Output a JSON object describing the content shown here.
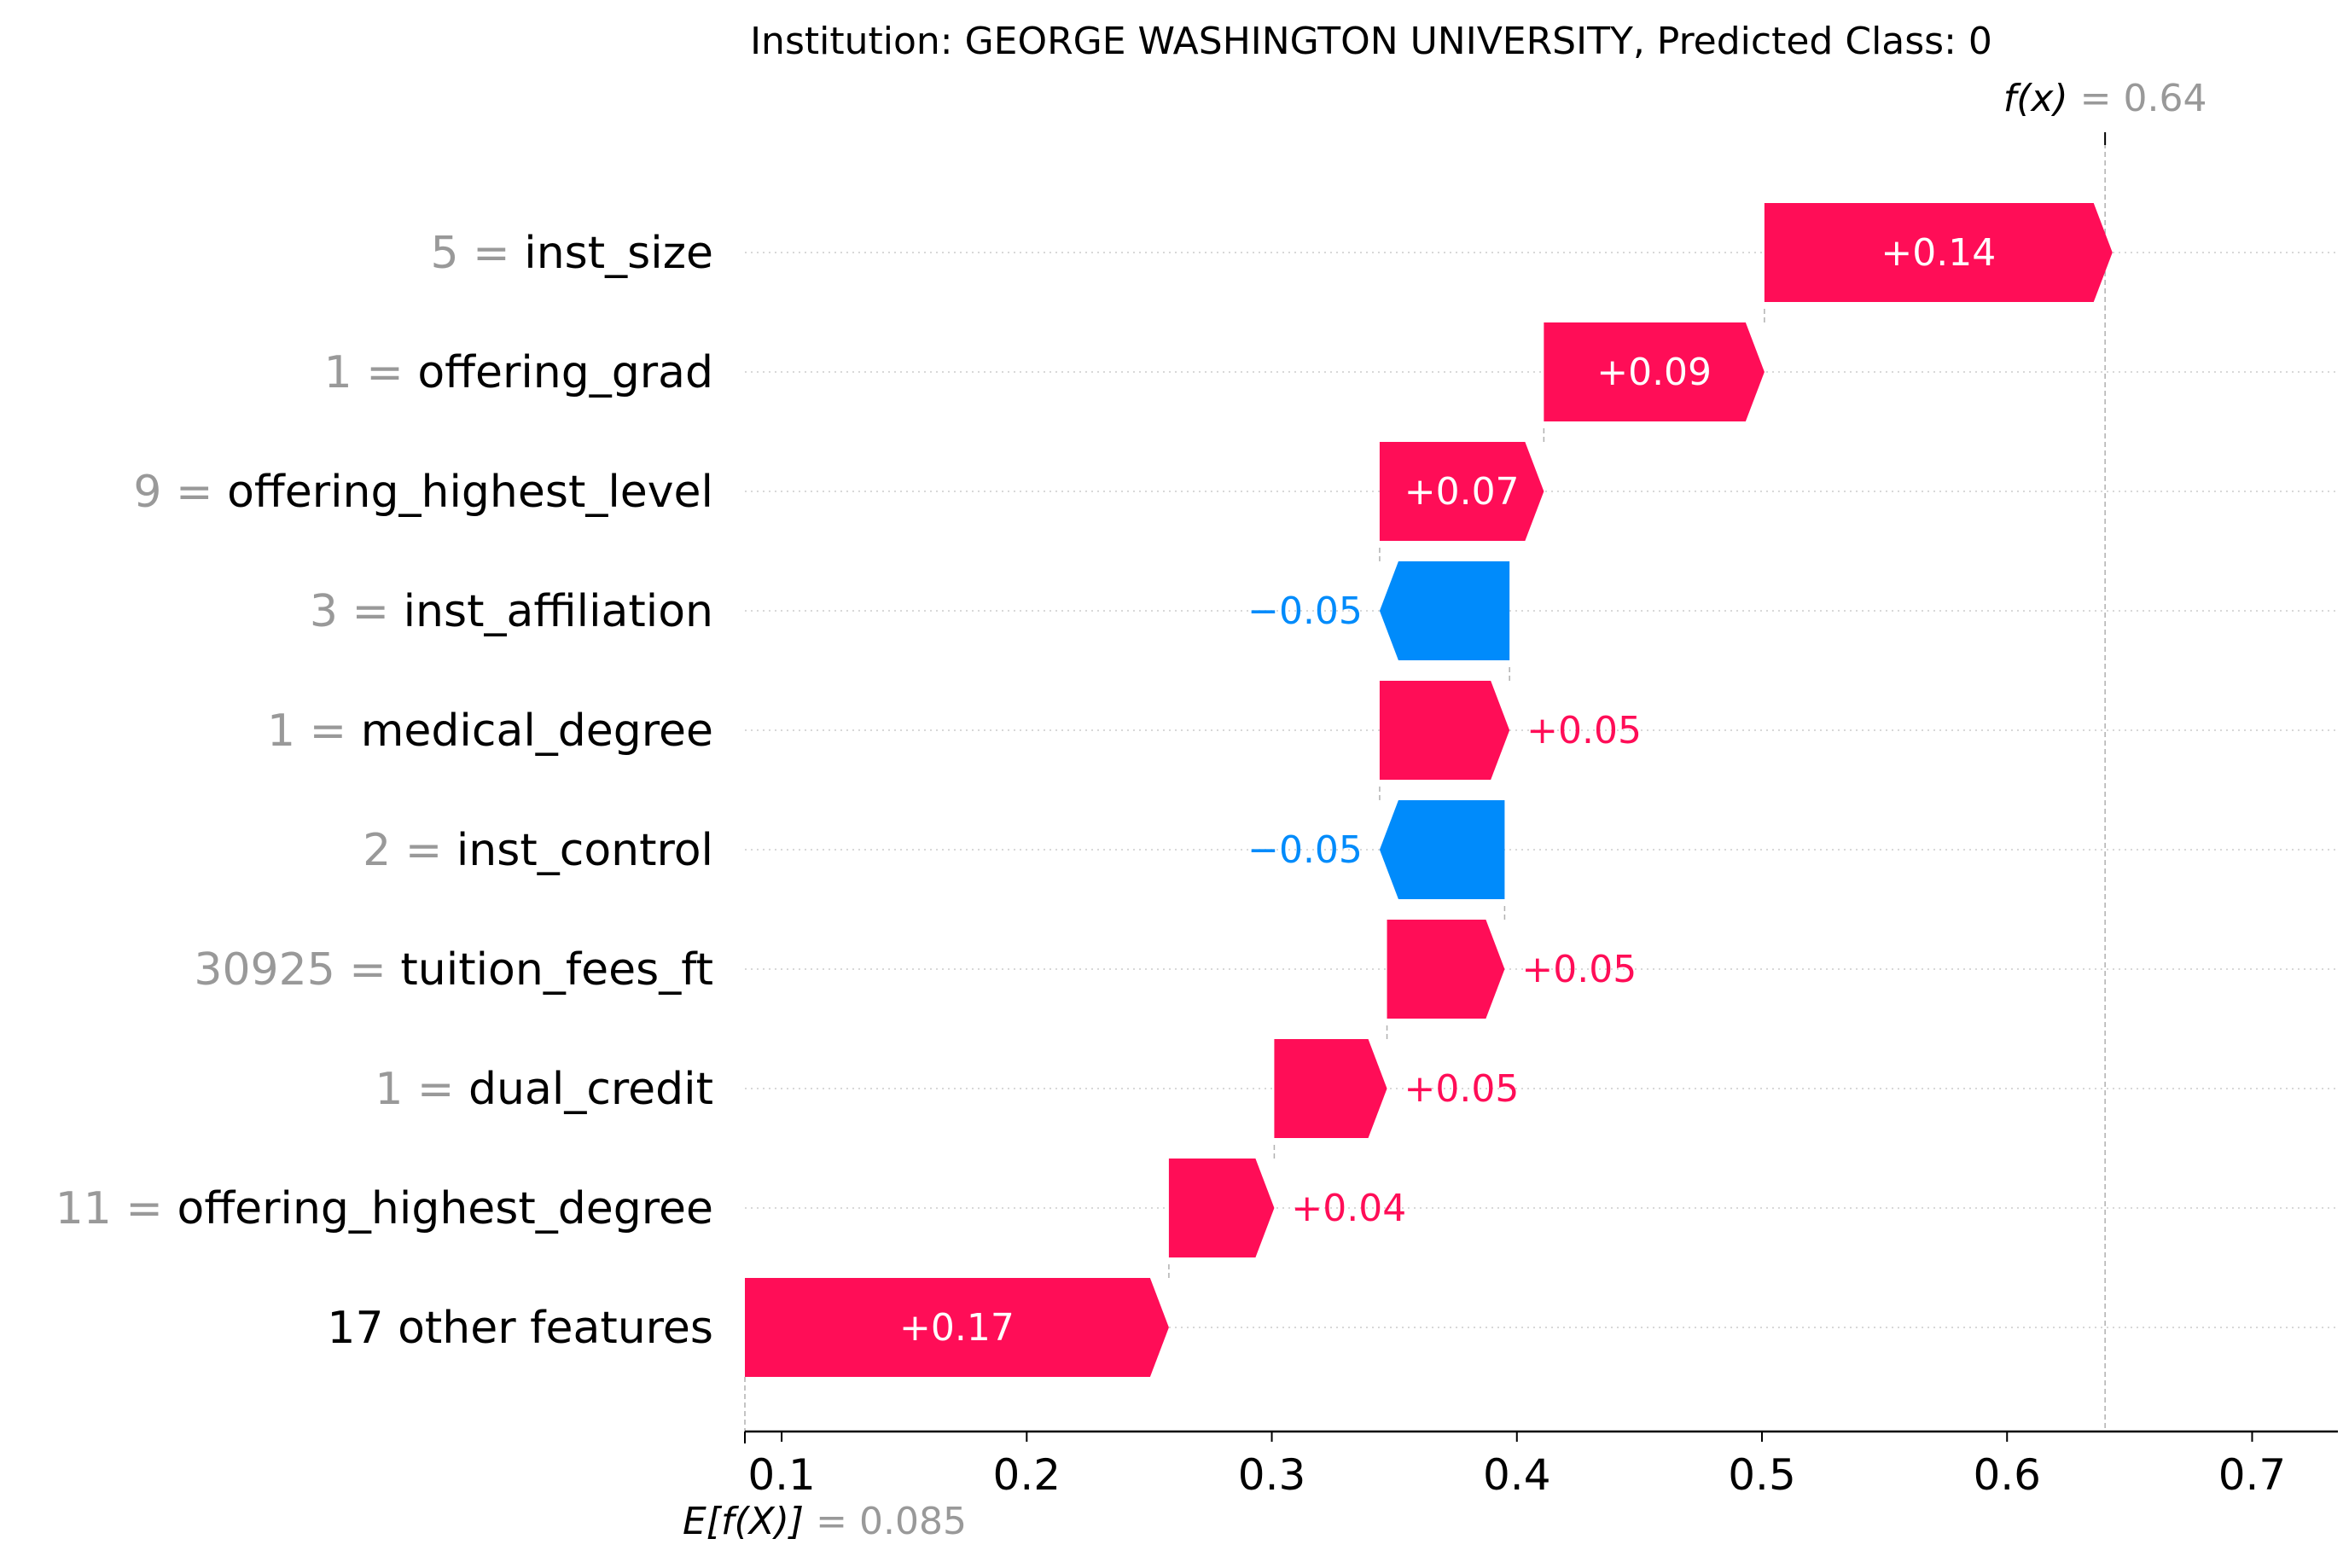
{
  "chart_data": {
    "type": "waterfall",
    "title": "Institution: GEORGE WASHINGTON UNIVERSITY, Predicted Class: 0",
    "fx_label": "f(x)",
    "fx_value": "0.64",
    "efx_label": "E[f(X)]",
    "efx_value": "0.085",
    "base_value": 0.085,
    "final_value": 0.64,
    "xlim": [
      0.085,
      0.735
    ],
    "xticks": [
      0.1,
      0.2,
      0.3,
      0.4,
      0.5,
      0.6,
      0.7
    ],
    "xtick_labels": [
      "0.1",
      "0.2",
      "0.3",
      "0.4",
      "0.5",
      "0.6",
      "0.7"
    ],
    "features": [
      {
        "value": "5",
        "name": "inst_size",
        "shap": 0.142,
        "label": "+0.14"
      },
      {
        "value": "1",
        "name": "offering_grad",
        "shap": 0.09,
        "label": "+0.09"
      },
      {
        "value": "9",
        "name": "offering_highest_level",
        "shap": 0.067,
        "label": "+0.07"
      },
      {
        "value": "3",
        "name": "inst_affiliation",
        "shap": -0.053,
        "label": "−0.05"
      },
      {
        "value": "1",
        "name": "medical_degree",
        "shap": 0.053,
        "label": "+0.05"
      },
      {
        "value": "2",
        "name": "inst_control",
        "shap": -0.051,
        "label": "−0.05"
      },
      {
        "value": "30925",
        "name": "tuition_fees_ft",
        "shap": 0.048,
        "label": "+0.05"
      },
      {
        "value": "1",
        "name": "dual_credit",
        "shap": 0.046,
        "label": "+0.05"
      },
      {
        "value": "11",
        "name": "offering_highest_degree",
        "shap": 0.043,
        "label": "+0.04"
      },
      {
        "value": "",
        "name": "17 other features",
        "shap": 0.173,
        "label": "+0.17"
      }
    ],
    "colors": {
      "positive": "#ff0d57",
      "negative": "#008bfb",
      "feature_value": "#999999",
      "text": "#000000"
    }
  }
}
